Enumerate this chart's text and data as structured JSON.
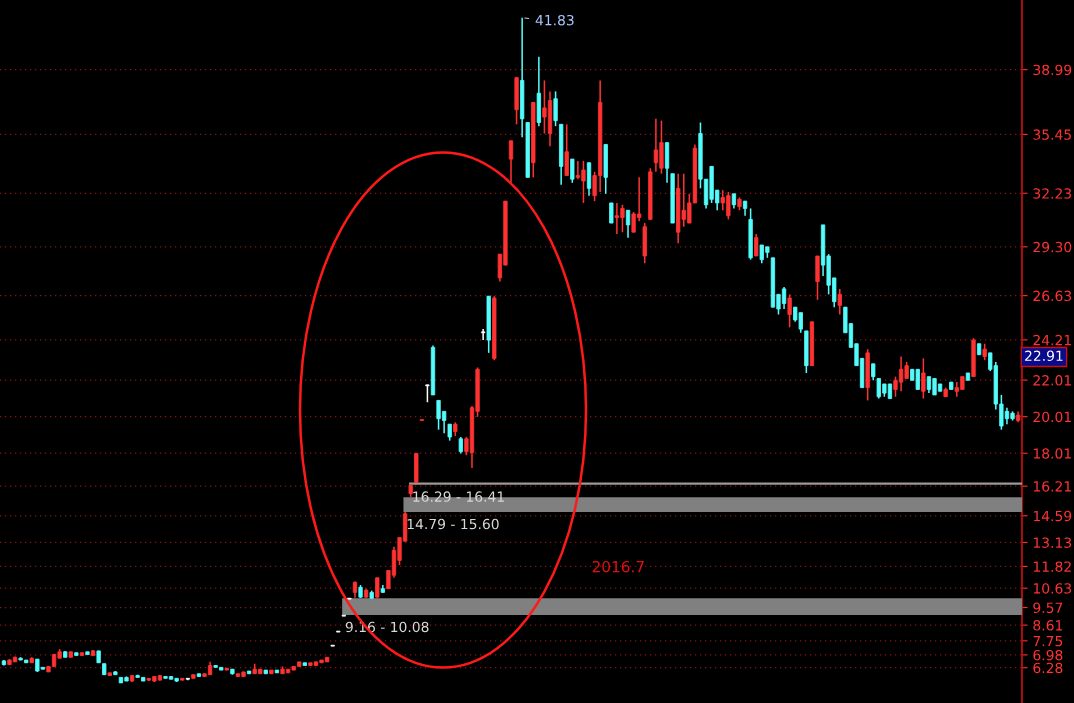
{
  "chart_data": {
    "type": "candlestick",
    "categories": [
      null,
      null,
      null,
      null,
      null,
      null,
      null,
      null,
      null,
      null,
      null,
      null,
      null,
      null,
      null,
      null,
      null,
      null,
      null,
      null,
      null,
      null,
      null,
      null,
      null,
      null,
      null,
      null,
      null,
      null,
      null,
      null,
      null,
      null,
      null,
      null,
      null,
      null,
      null,
      null,
      null,
      null,
      null,
      null,
      null,
      null,
      null,
      null,
      null,
      null,
      null,
      null,
      null,
      null,
      null,
      null,
      null,
      null,
      null,
      null,
      null,
      null,
      null,
      null,
      null,
      null,
      null,
      null,
      null,
      null,
      null,
      null,
      null,
      null,
      null,
      null,
      null,
      null,
      null,
      null,
      null,
      null,
      null,
      null,
      null,
      null,
      null,
      null,
      null,
      null,
      null,
      null,
      null,
      null,
      null,
      null,
      null,
      null,
      null,
      null,
      null,
      null,
      null,
      null,
      null,
      null,
      null,
      null,
      null,
      null,
      null,
      null,
      null,
      null,
      null,
      null,
      null,
      null,
      null,
      null,
      null,
      null,
      null,
      null,
      null,
      null,
      null,
      null,
      null,
      null,
      null,
      null,
      null,
      null,
      null,
      null,
      null,
      null,
      null,
      null,
      null,
      null,
      null,
      null,
      null,
      null,
      null,
      null,
      null,
      null,
      null,
      null,
      null,
      null,
      null,
      null,
      null,
      null,
      null,
      null,
      null,
      null,
      null,
      null,
      null,
      null,
      null,
      null,
      null,
      null,
      null,
      null,
      null,
      null,
      null,
      null,
      null,
      null,
      null,
      null,
      null,
      null,
      null
    ],
    "ohlc": [
      [
        6.65,
        6.7,
        6.4,
        6.45
      ],
      [
        6.45,
        6.75,
        6.45,
        6.7
      ],
      [
        6.6,
        6.9,
        6.6,
        6.85
      ],
      [
        6.8,
        6.85,
        6.7,
        6.7
      ],
      [
        6.7,
        6.7,
        6.55,
        6.55
      ],
      [
        6.55,
        6.85,
        6.55,
        6.8
      ],
      [
        6.75,
        6.75,
        6.05,
        6.1
      ],
      [
        6.3,
        6.3,
        6.2,
        6.2
      ],
      [
        6.05,
        6.35,
        6.05,
        6.35
      ],
      [
        6.35,
        7.05,
        6.35,
        7.0
      ],
      [
        6.8,
        7.3,
        6.8,
        7.15
      ],
      [
        7.15,
        7.2,
        6.85,
        6.85
      ],
      [
        6.85,
        7.15,
        6.85,
        7.15
      ],
      [
        7.1,
        7.1,
        6.95,
        6.95
      ],
      [
        6.95,
        7.1,
        6.95,
        7.1
      ],
      [
        7.15,
        7.15,
        7.0,
        7.0
      ],
      [
        6.95,
        7.25,
        6.95,
        7.2
      ],
      [
        7.2,
        7.2,
        6.55,
        6.55
      ],
      [
        6.5,
        6.5,
        5.9,
        5.9
      ],
      [
        5.85,
        6.0,
        5.85,
        6.0
      ],
      [
        6.05,
        6.1,
        5.9,
        5.9
      ],
      [
        5.75,
        5.75,
        5.45,
        5.45
      ],
      [
        5.75,
        5.8,
        5.55,
        5.55
      ],
      [
        5.55,
        5.85,
        5.5,
        5.85
      ],
      [
        5.85,
        5.9,
        5.75,
        5.75
      ],
      [
        5.75,
        5.75,
        5.55,
        5.55
      ],
      [
        5.6,
        5.7,
        5.55,
        5.7
      ],
      [
        5.55,
        5.8,
        5.5,
        5.8
      ],
      [
        5.6,
        5.85,
        5.6,
        5.85
      ],
      [
        5.8,
        5.8,
        5.7,
        5.7
      ],
      [
        5.8,
        5.8,
        5.65,
        5.65
      ],
      [
        5.7,
        5.7,
        5.5,
        5.55
      ],
      [
        5.6,
        5.7,
        5.6,
        5.7
      ],
      [
        5.65,
        5.7,
        5.6,
        5.65
      ],
      [
        5.7,
        5.9,
        5.7,
        5.9
      ],
      [
        5.95,
        5.95,
        5.8,
        5.8
      ],
      [
        5.8,
        5.95,
        5.8,
        5.95
      ],
      [
        5.9,
        6.6,
        5.9,
        6.4
      ],
      [
        6.4,
        6.4,
        6.3,
        6.3
      ],
      [
        6.3,
        6.3,
        6.15,
        6.15
      ],
      [
        6.15,
        6.25,
        6.15,
        6.25
      ],
      [
        6.2,
        6.2,
        5.9,
        5.95
      ],
      [
        5.8,
        5.95,
        5.8,
        5.95
      ],
      [
        5.8,
        6.05,
        5.8,
        6.05
      ],
      [
        6.1,
        6.1,
        5.95,
        5.95
      ],
      [
        5.95,
        6.5,
        5.95,
        6.2
      ],
      [
        5.95,
        6.2,
        5.95,
        6.2
      ],
      [
        6.15,
        6.15,
        5.95,
        5.95
      ],
      [
        5.95,
        6.15,
        5.95,
        6.15
      ],
      [
        6.15,
        6.15,
        6.0,
        6.0
      ],
      [
        5.95,
        6.35,
        5.95,
        6.2
      ],
      [
        6.0,
        6.2,
        6.0,
        6.2
      ],
      [
        6.15,
        6.35,
        6.15,
        6.35
      ],
      [
        6.35,
        6.6,
        6.35,
        6.6
      ],
      [
        6.55,
        6.55,
        6.4,
        6.4
      ],
      [
        6.4,
        6.55,
        6.4,
        6.55
      ],
      [
        6.4,
        6.6,
        6.4,
        6.6
      ],
      [
        6.55,
        6.7,
        6.55,
        6.7
      ],
      [
        6.6,
        6.85,
        6.6,
        6.85
      ],
      [
        7.46,
        7.46,
        7.46,
        7.46
      ],
      [
        8.23,
        8.23,
        8.23,
        8.23
      ],
      [
        9.1,
        9.1,
        9.1,
        9.1
      ],
      [
        10.03,
        10.03,
        10.03,
        10.03
      ],
      [
        10.4,
        11.0,
        10.1,
        10.95
      ],
      [
        10.68,
        10.8,
        10.1,
        10.14
      ],
      [
        10.14,
        10.6,
        10.1,
        10.52
      ],
      [
        10.4,
        10.5,
        10.05,
        10.08
      ],
      [
        10.14,
        11.2,
        10.1,
        11.2
      ],
      [
        10.6,
        10.8,
        10.4,
        10.4
      ],
      [
        10.6,
        11.6,
        10.6,
        11.6
      ],
      [
        11.34,
        12.9,
        11.2,
        12.7
      ],
      [
        12.15,
        13.4,
        11.9,
        13.4
      ],
      [
        13.2,
        14.79,
        13.2,
        14.7
      ],
      [
        15.8,
        16.29,
        15.6,
        16.25
      ],
      [
        16.41,
        18.0,
        16.41,
        18.0
      ],
      [
        19.8,
        19.8,
        19.8,
        19.8
      ],
      [
        21.7,
        21.76,
        20.8,
        21.7
      ],
      [
        23.8,
        23.9,
        21.2,
        21.2
      ],
      [
        20.9,
        20.9,
        19.3,
        19.9
      ],
      [
        20.3,
        20.3,
        19.1,
        19.8
      ],
      [
        19.6,
        19.6,
        18.7,
        18.9
      ],
      [
        19.2,
        19.7,
        18.95,
        19.6
      ],
      [
        18.8,
        18.9,
        18.0,
        18.1
      ],
      [
        18.1,
        18.9,
        17.9,
        18.8
      ],
      [
        18.05,
        20.6,
        17.2,
        20.5
      ],
      [
        20.3,
        22.7,
        20.0,
        22.6
      ],
      [
        24.6,
        24.8,
        24.2,
        24.6
      ],
      [
        26.6,
        26.6,
        23.5,
        24.2
      ],
      [
        23.2,
        26.6,
        23.1,
        26.5
      ],
      [
        27.6,
        28.9,
        27.4,
        28.9
      ],
      [
        28.3,
        31.8,
        28.3,
        31.8
      ],
      [
        34.1,
        35.1,
        32.8,
        35.1
      ],
      [
        36.8,
        38.6,
        36.0,
        38.55
      ],
      [
        38.4,
        41.83,
        35.3,
        36.3
      ],
      [
        36.1,
        36.1,
        33.1,
        33.1
      ],
      [
        33.9,
        37.2,
        33.1,
        37.2
      ],
      [
        37.7,
        39.7,
        35.9,
        36.1
      ],
      [
        36.4,
        38.4,
        35.5,
        36.9
      ],
      [
        35.5,
        37.8,
        34.8,
        37.3
      ],
      [
        37.4,
        37.8,
        35.9,
        36.2
      ],
      [
        36.0,
        36.0,
        32.7,
        33.7
      ],
      [
        33.2,
        36.0,
        33.2,
        34.5
      ],
      [
        34.1,
        34.1,
        32.8,
        33.0
      ],
      [
        33.1,
        34.0,
        33.0,
        33.2
      ],
      [
        32.9,
        34.0,
        31.7,
        33.5
      ],
      [
        33.9,
        33.9,
        32.1,
        32.5
      ],
      [
        32.1,
        33.4,
        31.8,
        33.2
      ],
      [
        33.2,
        38.4,
        32.3,
        37.2
      ],
      [
        34.9,
        34.9,
        32.2,
        33.1
      ],
      [
        31.7,
        31.7,
        30.6,
        30.6
      ],
      [
        30.9,
        31.7,
        30.0,
        31.0
      ],
      [
        30.9,
        31.6,
        30.1,
        31.4
      ],
      [
        31.3,
        31.3,
        29.8,
        30.5
      ],
      [
        30.1,
        31.2,
        30.1,
        31.1
      ],
      [
        30.9,
        33.1,
        30.7,
        31.1
      ],
      [
        28.8,
        30.6,
        28.4,
        30.4
      ],
      [
        30.8,
        33.6,
        30.8,
        33.4
      ],
      [
        33.9,
        36.3,
        33.4,
        34.6
      ],
      [
        33.6,
        36.2,
        33.3,
        35.0
      ],
      [
        35.0,
        35.0,
        32.8,
        33.6
      ],
      [
        33.3,
        33.3,
        30.6,
        30.6
      ],
      [
        30.1,
        33.3,
        29.5,
        32.5
      ],
      [
        30.8,
        33.3,
        30.4,
        31.3
      ],
      [
        30.6,
        32.2,
        30.6,
        31.7
      ],
      [
        31.7,
        34.9,
        31.7,
        34.7
      ],
      [
        35.5,
        36.1,
        32.5,
        33.0
      ],
      [
        33.0,
        33.0,
        31.4,
        31.6
      ],
      [
        33.7,
        33.7,
        31.7,
        31.9
      ],
      [
        32.4,
        32.4,
        31.3,
        31.7
      ],
      [
        31.7,
        32.4,
        31.3,
        32.0
      ],
      [
        31.0,
        32.3,
        30.8,
        32.1
      ],
      [
        32.2,
        32.2,
        31.4,
        31.6
      ],
      [
        31.5,
        32.0,
        31.3,
        31.9
      ],
      [
        31.8,
        31.8,
        31.0,
        31.4
      ],
      [
        30.8,
        31.4,
        28.6,
        28.7
      ],
      [
        28.8,
        30.0,
        28.8,
        29.8
      ],
      [
        29.4,
        29.4,
        28.4,
        28.6
      ],
      [
        29.3,
        29.3,
        28.7,
        29.0
      ],
      [
        28.7,
        28.7,
        26.0,
        26.0
      ],
      [
        26.7,
        26.7,
        25.6,
        25.9
      ],
      [
        27.0,
        27.1,
        25.9,
        26.2
      ],
      [
        25.6,
        26.7,
        24.9,
        26.5
      ],
      [
        26.0,
        26.0,
        25.2,
        25.3
      ],
      [
        25.7,
        25.7,
        24.6,
        24.8
      ],
      [
        24.7,
        24.7,
        22.4,
        22.8
      ],
      [
        22.8,
        25.2,
        22.8,
        25.2
      ],
      [
        27.4,
        28.8,
        26.4,
        28.8
      ],
      [
        30.5,
        30.5,
        27.7,
        28.3
      ],
      [
        28.8,
        28.9,
        26.7,
        27.2
      ],
      [
        27.6,
        27.6,
        26.0,
        26.3
      ],
      [
        26.1,
        27.0,
        25.6,
        26.7
      ],
      [
        26.0,
        26.0,
        24.6,
        24.6
      ],
      [
        25.1,
        25.1,
        23.8,
        23.8
      ],
      [
        24.0,
        24.0,
        22.8,
        22.8
      ],
      [
        23.2,
        23.2,
        21.6,
        21.6
      ],
      [
        21.6,
        23.7,
        20.9,
        23.5
      ],
      [
        22.9,
        22.9,
        22.0,
        22.2
      ],
      [
        22.1,
        22.1,
        21.0,
        21.1
      ],
      [
        21.8,
        21.8,
        21.1,
        21.3
      ],
      [
        21.8,
        21.8,
        21.0,
        21.0
      ],
      [
        21.5,
        22.2,
        21.1,
        22.0
      ],
      [
        21.9,
        23.3,
        21.4,
        22.6
      ],
      [
        22.1,
        23.0,
        22.1,
        22.8
      ],
      [
        22.6,
        22.6,
        22.0,
        22.0
      ],
      [
        22.6,
        22.6,
        21.5,
        21.5
      ],
      [
        21.4,
        23.2,
        21.0,
        22.4
      ],
      [
        22.2,
        22.2,
        21.3,
        21.5
      ],
      [
        22.1,
        22.1,
        21.2,
        21.2
      ],
      [
        21.8,
        21.8,
        21.4,
        21.4
      ],
      [
        21.1,
        21.6,
        21.1,
        21.5
      ],
      [
        21.9,
        21.9,
        21.5,
        21.5
      ],
      [
        21.4,
        21.9,
        21.1,
        21.6
      ],
      [
        21.5,
        22.2,
        21.5,
        22.2
      ],
      [
        22.4,
        22.4,
        22.0,
        22.0
      ],
      [
        22.2,
        24.3,
        22.2,
        24.2
      ],
      [
        24.0,
        24.0,
        23.4,
        23.4
      ],
      [
        23.3,
        24.0,
        23.1,
        23.7
      ],
      [
        23.5,
        23.5,
        22.5,
        22.6
      ],
      [
        22.8,
        23.0,
        20.4,
        20.7
      ],
      [
        20.7,
        21.2,
        19.3,
        19.5
      ],
      [
        20.3,
        20.5,
        19.6,
        19.9
      ],
      [
        20.2,
        20.3,
        19.8,
        19.9
      ],
      [
        19.8,
        20.3,
        19.7,
        20.1
      ]
    ],
    "colors": [
      "#54fcfc",
      "#ff3232",
      "#ff3232",
      "#54fcfc",
      "#54fcfc",
      "#ff3232",
      "#54fcfc",
      "#54fcfc",
      "#ff3232",
      "#ff3232",
      "#ff3232",
      "#54fcfc",
      "#ff3232",
      "#54fcfc",
      "#ff3232",
      "#54fcfc",
      "#ff3232",
      "#54fcfc",
      "#54fcfc",
      "#ff3232",
      "#54fcfc",
      "#54fcfc",
      "#54fcfc",
      "#ff3232",
      "#54fcfc",
      "#54fcfc",
      "#ff3232",
      "#ff3232",
      "#ff3232",
      "#54fcfc",
      "#54fcfc",
      "#54fcfc",
      "#ff3232",
      "#ffffff",
      "#ff3232",
      "#54fcfc",
      "#ff3232",
      "#ff3232",
      "#54fcfc",
      "#54fcfc",
      "#ff3232",
      "#54fcfc",
      "#ff3232",
      "#ff3232",
      "#54fcfc",
      "#ff3232",
      "#ff3232",
      "#54fcfc",
      "#ff3232",
      "#54fcfc",
      "#ff3232",
      "#ff3232",
      "#ff3232",
      "#ff3232",
      "#54fcfc",
      "#ff3232",
      "#ff3232",
      "#ff3232",
      "#ff3232",
      "#ffffff",
      "#ffffff",
      "#ffffff",
      "#ffffff",
      "#ff3232",
      "#54fcfc",
      "#ff3232",
      "#54fcfc",
      "#ff3232",
      "#54fcfc",
      "#ff3232",
      "#ff3232",
      "#ff3232",
      "#ff3232",
      "#ff3232",
      "#ff3232",
      "#ff3232",
      "#ffffff",
      "#54fcfc",
      "#54fcfc",
      "#54fcfc",
      "#54fcfc",
      "#ff3232",
      "#54fcfc",
      "#ff3232",
      "#ff3232",
      "#ff3232",
      "#ffffff",
      "#54fcfc",
      "#ff3232",
      "#ff3232",
      "#ff3232",
      "#ff3232",
      "#ff3232",
      "#54fcfc",
      "#54fcfc",
      "#ff3232",
      "#54fcfc",
      "#ff3232",
      "#ff3232",
      "#54fcfc",
      "#54fcfc",
      "#ff3232",
      "#54fcfc",
      "#ff3232",
      "#ff3232",
      "#54fcfc",
      "#ff3232",
      "#ff3232",
      "#54fcfc",
      "#54fcfc",
      "#ff3232",
      "#ff3232",
      "#54fcfc",
      "#ff3232",
      "#ff3232",
      "#ff3232",
      "#ff3232",
      "#ff3232",
      "#ff3232",
      "#54fcfc",
      "#54fcfc",
      "#ff3232",
      "#ff3232",
      "#ff3232",
      "#ff3232",
      "#54fcfc",
      "#54fcfc",
      "#54fcfc",
      "#54fcfc",
      "#ff3232",
      "#ff3232",
      "#54fcfc",
      "#ff3232",
      "#54fcfc",
      "#54fcfc",
      "#ff3232",
      "#54fcfc",
      "#54fcfc",
      "#54fcfc",
      "#54fcfc",
      "#54fcfc",
      "#ff3232",
      "#54fcfc",
      "#54fcfc",
      "#54fcfc",
      "#ff3232",
      "#ff3232",
      "#54fcfc",
      "#54fcfc",
      "#54fcfc",
      "#ff3232",
      "#54fcfc",
      "#54fcfc",
      "#54fcfc",
      "#54fcfc",
      "#ff3232",
      "#54fcfc",
      "#54fcfc",
      "#54fcfc",
      "#54fcfc",
      "#ff3232",
      "#ff3232",
      "#ff3232",
      "#54fcfc",
      "#54fcfc",
      "#ff3232",
      "#54fcfc",
      "#54fcfc",
      "#54fcfc",
      "#ff3232",
      "#54fcfc",
      "#ff3232",
      "#ff3232",
      "#54fcfc",
      "#ff3232",
      "#54fcfc",
      "#ff3232",
      "#54fcfc",
      "#54fcfc",
      "#54fcfc",
      "#54fcfc",
      "#54fcfc",
      "#ff3232"
    ],
    "ylim": [
      4.35,
      42.8
    ],
    "yticks": [
      6.28,
      6.98,
      7.75,
      8.61,
      9.57,
      10.63,
      11.82,
      13.13,
      14.59,
      16.21,
      18.01,
      20.01,
      22.01,
      24.21,
      26.63,
      {
        "value": 29.3,
        "label": "29.30"
      },
      32.23,
      35.45,
      38.99
    ],
    "grid": "y",
    "tick_labels": "y",
    "bands": [
      {
        "axis": "y",
        "from": 9.16,
        "to": 10.08,
        "label": "9.16 - 10.08",
        "color": "#808080"
      },
      {
        "axis": "y",
        "from": 14.79,
        "to": 15.6,
        "label": "14.79 - 15.60",
        "color": "#808080"
      },
      {
        "axis": "y",
        "from": 16.29,
        "to": 16.41,
        "label": "16.29 - 16.41",
        "color": "#9a9a9a"
      }
    ],
    "annotations": [
      "2016.7",
      "41.83",
      "22.91"
    ]
  }
}
